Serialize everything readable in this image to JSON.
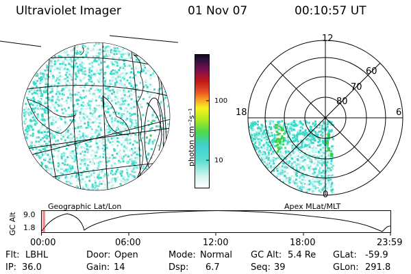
{
  "header": {
    "instrument": "Ultraviolet Imager",
    "date": "01 Nov 07",
    "time": "00:10:57 UT"
  },
  "colorbar": {
    "unit": "photon cm⁻²s⁻¹",
    "ticks": [
      "100",
      "10"
    ]
  },
  "polar": {
    "top": "12",
    "left": "18",
    "right": "6",
    "bottom": "0",
    "rings": [
      "60",
      "70",
      "80"
    ]
  },
  "captions": {
    "geo": "Geographic Lat/Lon",
    "apex": "Apex MLat/MLT"
  },
  "orbit": {
    "label": "GC Alt",
    "ymax": "9.0",
    "ymin": "1.8",
    "ticks": [
      "00:00",
      "06:00",
      "12:00",
      "18:00",
      "23:59"
    ]
  },
  "status": {
    "flt_label": "Flt:",
    "flt": "LBHL",
    "ip_label": "IP:",
    "ip": "36.0",
    "door_label": "Door:",
    "door": "Open",
    "gain_label": "Gain:",
    "gain": "14",
    "mode_label": "Mode:",
    "mode": "Normal",
    "dsp_label": "Dsp:",
    "dsp": "6.7",
    "gcalt_label": "GC Alt:",
    "gcalt": "5.4 Re",
    "seq_label": "Seq:",
    "seq": "39",
    "glat_label": "GLat:",
    "glat": "-59.9",
    "glon_label": "GLon:",
    "glon": "291.8"
  },
  "colors": {
    "cyan": "#3fd8c8",
    "pale": "#c8f0ec",
    "green": "#3cd040",
    "line": "#000000",
    "marker": "#e02020"
  }
}
